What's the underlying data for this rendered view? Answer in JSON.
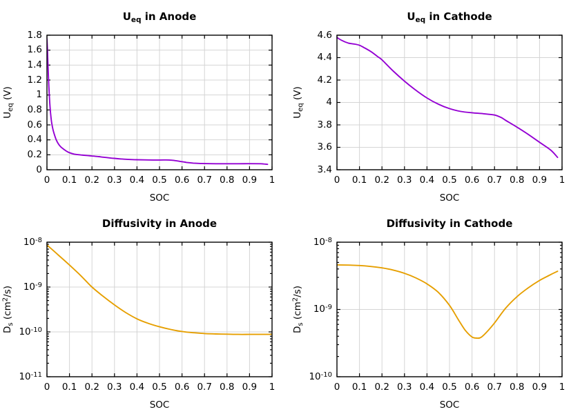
{
  "page": {
    "background": "#ffffff"
  },
  "style": {
    "grid_color": "#d4d4d4",
    "axis_color": "#000000",
    "purple": "#9400d3",
    "orange": "#e69f00"
  },
  "chart_data": [
    {
      "id": "ueq-anode",
      "type": "line",
      "title": "U_{eq} in Anode",
      "xlabel": "SOC",
      "ylabel": "U_{eq} (V)",
      "xlim": [
        0,
        1
      ],
      "ylim": [
        0,
        1.8
      ],
      "yscale": "linear",
      "grid": true,
      "line_color": "#9400d3",
      "xticks": {
        "values": [
          0,
          0.1,
          0.2,
          0.3,
          0.4,
          0.5,
          0.6,
          0.7,
          0.8,
          0.9,
          1
        ],
        "labels": [
          "0",
          "0.1",
          "0.2",
          "0.3",
          "0.4",
          "0.5",
          "0.6",
          "0.7",
          "0.8",
          "0.9",
          "1"
        ]
      },
      "yticks": {
        "values": [
          0,
          0.2,
          0.4,
          0.6,
          0.8,
          1,
          1.2,
          1.4,
          1.6,
          1.8
        ],
        "labels": [
          "0",
          "0.2",
          "0.4",
          "0.6",
          "0.8",
          "1",
          "1.2",
          "1.4",
          "1.6",
          "1.8"
        ]
      },
      "series": [
        {
          "x": [
            0,
            0.002,
            0.004,
            0.008,
            0.012,
            0.016,
            0.02,
            0.025,
            0.03,
            0.04,
            0.05,
            0.06,
            0.07,
            0.08,
            0.09,
            0.1,
            0.12,
            0.15,
            0.18,
            0.2,
            0.23,
            0.25,
            0.28,
            0.3,
            0.33,
            0.35,
            0.38,
            0.4,
            0.45,
            0.5,
            0.53,
            0.55,
            0.57,
            0.6,
            0.62,
            0.65,
            0.68,
            0.7,
            0.75,
            0.8,
            0.85,
            0.9,
            0.95,
            0.98
          ],
          "y": [
            1.75,
            1.62,
            1.45,
            1.15,
            0.92,
            0.76,
            0.65,
            0.56,
            0.5,
            0.41,
            0.35,
            0.31,
            0.285,
            0.262,
            0.243,
            0.228,
            0.21,
            0.198,
            0.19,
            0.184,
            0.175,
            0.168,
            0.158,
            0.152,
            0.144,
            0.14,
            0.136,
            0.134,
            0.131,
            0.13,
            0.131,
            0.128,
            0.122,
            0.108,
            0.098,
            0.089,
            0.084,
            0.082,
            0.08,
            0.08,
            0.08,
            0.081,
            0.08,
            0.072
          ]
        }
      ]
    },
    {
      "id": "ueq-cathode",
      "type": "line",
      "title": "U_{eq} in Cathode",
      "xlabel": "SOC",
      "ylabel": "U_{eq} (V)",
      "xlim": [
        0,
        1
      ],
      "ylim": [
        3.4,
        4.6
      ],
      "yscale": "linear",
      "grid": true,
      "line_color": "#9400d3",
      "xticks": {
        "values": [
          0,
          0.1,
          0.2,
          0.3,
          0.4,
          0.5,
          0.6,
          0.7,
          0.8,
          0.9,
          1
        ],
        "labels": [
          "0",
          "0.1",
          "0.2",
          "0.3",
          "0.4",
          "0.5",
          "0.6",
          "0.7",
          "0.8",
          "0.9",
          "1"
        ]
      },
      "yticks": {
        "values": [
          3.4,
          3.6,
          3.8,
          4,
          4.2,
          4.4,
          4.6
        ],
        "labels": [
          "3.4",
          "3.6",
          "3.8",
          "4",
          "4.2",
          "4.4",
          "4.6"
        ]
      },
      "series": [
        {
          "x": [
            0,
            0.02,
            0.05,
            0.08,
            0.1,
            0.12,
            0.15,
            0.18,
            0.2,
            0.25,
            0.3,
            0.35,
            0.4,
            0.45,
            0.5,
            0.55,
            0.6,
            0.65,
            0.7,
            0.73,
            0.75,
            0.8,
            0.85,
            0.9,
            0.95,
            0.98
          ],
          "y": [
            4.58,
            4.555,
            4.53,
            4.52,
            4.51,
            4.49,
            4.455,
            4.41,
            4.38,
            4.28,
            4.19,
            4.11,
            4.04,
            3.985,
            3.945,
            3.92,
            3.908,
            3.9,
            3.888,
            3.865,
            3.84,
            3.78,
            3.715,
            3.645,
            3.575,
            3.51
          ]
        }
      ]
    },
    {
      "id": "diffusivity-anode",
      "type": "line",
      "title": "Diffusivity in Anode",
      "xlabel": "SOC",
      "ylabel": "D_{s} (cm^{2}/s)",
      "xlim": [
        0,
        1
      ],
      "ylim": [
        1e-11,
        1e-08
      ],
      "yscale": "log",
      "grid": true,
      "line_color": "#e69f00",
      "xticks": {
        "values": [
          0,
          0.1,
          0.2,
          0.3,
          0.4,
          0.5,
          0.6,
          0.7,
          0.8,
          0.9,
          1
        ],
        "labels": [
          "0",
          "0.1",
          "0.2",
          "0.3",
          "0.4",
          "0.5",
          "0.6",
          "0.7",
          "0.8",
          "0.9",
          "1"
        ]
      },
      "yticks": {
        "values": [
          1e-11,
          1e-10,
          1e-09,
          1e-08
        ],
        "labels": [
          "10^{-11}",
          "10^{-10}",
          "10^{-9}",
          "10^{-8}"
        ]
      },
      "series": [
        {
          "x": [
            0,
            0.05,
            0.1,
            0.15,
            0.2,
            0.25,
            0.3,
            0.35,
            0.4,
            0.45,
            0.5,
            0.55,
            0.6,
            0.65,
            0.7,
            0.75,
            0.8,
            0.85,
            0.9,
            0.95,
            1
          ],
          "y": [
            8.7e-09,
            5.2e-09,
            3.1e-09,
            1.8e-09,
            1e-09,
            6.2e-10,
            4e-10,
            2.7e-10,
            1.95e-10,
            1.55e-10,
            1.3e-10,
            1.13e-10,
            1.02e-10,
            9.6e-11,
            9.2e-11,
            9e-11,
            8.9e-11,
            8.8e-11,
            8.8e-11,
            8.8e-11,
            8.8e-11
          ]
        }
      ]
    },
    {
      "id": "diffusivity-cathode",
      "type": "line",
      "title": "Diffusivity in Cathode",
      "xlabel": "SOC",
      "ylabel": "D_{s} (cm^{2}/s)",
      "xlim": [
        0,
        1
      ],
      "ylim": [
        1e-10,
        1e-08
      ],
      "yscale": "log",
      "grid": true,
      "line_color": "#e69f00",
      "xticks": {
        "values": [
          0,
          0.1,
          0.2,
          0.3,
          0.4,
          0.5,
          0.6,
          0.7,
          0.8,
          0.9,
          1
        ],
        "labels": [
          "0",
          "0.1",
          "0.2",
          "0.3",
          "0.4",
          "0.5",
          "0.6",
          "0.7",
          "0.8",
          "0.9",
          "1"
        ]
      },
      "yticks": {
        "values": [
          1e-10,
          1e-09,
          1e-08
        ],
        "labels": [
          "10^{-10}",
          "10^{-9}",
          "10^{-8}"
        ]
      },
      "series": [
        {
          "x": [
            0,
            0.05,
            0.1,
            0.15,
            0.2,
            0.25,
            0.3,
            0.35,
            0.4,
            0.45,
            0.5,
            0.54,
            0.57,
            0.6,
            0.62,
            0.64,
            0.67,
            0.7,
            0.75,
            0.8,
            0.85,
            0.9,
            0.95,
            0.98
          ],
          "y": [
            4.6e-09,
            4.57e-09,
            4.5e-09,
            4.36e-09,
            4.15e-09,
            3.85e-09,
            3.45e-09,
            2.95e-09,
            2.4e-09,
            1.8e-09,
            1.15e-09,
            7e-10,
            4.9e-10,
            3.9e-10,
            3.75e-10,
            3.85e-10,
            4.8e-10,
            6.3e-10,
            1.05e-09,
            1.55e-09,
            2.1e-09,
            2.7e-09,
            3.3e-09,
            3.7e-09
          ]
        }
      ]
    }
  ]
}
